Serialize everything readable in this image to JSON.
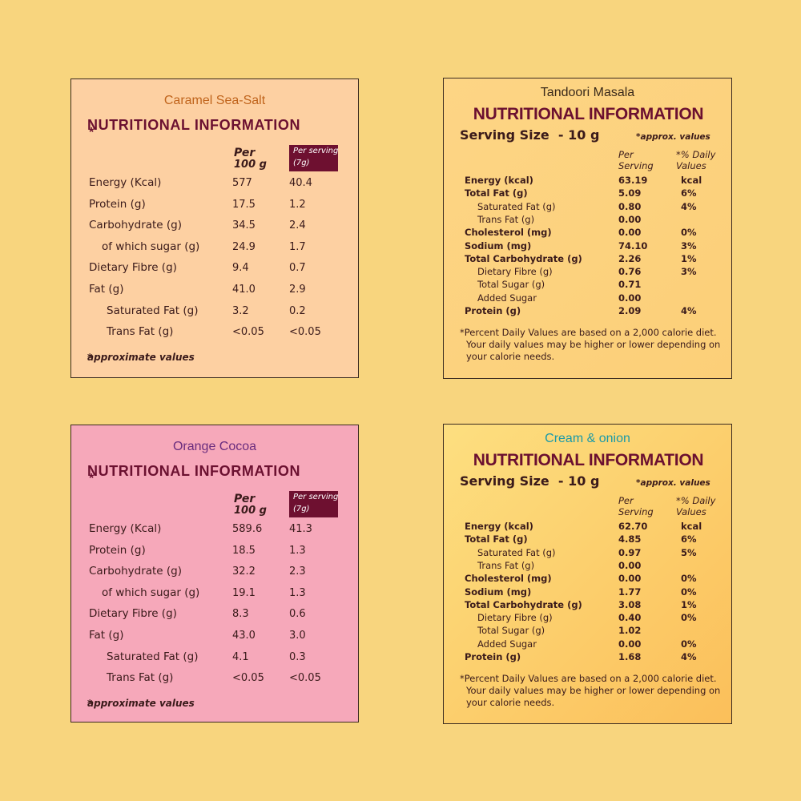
{
  "panels": [
    {
      "name": "Caramel Sea-Salt",
      "title": "NUTRITIONAL INFORMATION",
      "title_mark": "*",
      "headers": [
        [
          "Per",
          "100 g"
        ],
        [
          "Per serving",
          "(7g)"
        ]
      ],
      "rows": [
        {
          "label": "Energy (Kcal)",
          "level": 0,
          "values": [
            "577",
            "40.4"
          ]
        },
        {
          "label": "Protein (g)",
          "level": 0,
          "values": [
            "17.5",
            "1.2"
          ]
        },
        {
          "label": "Carbohydrate (g)",
          "level": 0,
          "values": [
            "34.5",
            "2.4"
          ]
        },
        {
          "label": "of which sugar (g)",
          "level": 1,
          "values": [
            "24.9",
            "1.7"
          ]
        },
        {
          "label": "Dietary Fibre (g)",
          "level": 0,
          "values": [
            "9.4",
            "0.7"
          ]
        },
        {
          "label": "Fat (g)",
          "level": 0,
          "values": [
            "41.0",
            "2.9"
          ]
        },
        {
          "label": "Saturated Fat (g)",
          "level": 2,
          "values": [
            "3.2",
            "0.2"
          ]
        },
        {
          "label": "Trans Fat (g)",
          "level": 2,
          "values": [
            "<0.05",
            "<0.05"
          ]
        }
      ],
      "footnote_mark": "*",
      "footnote": "approximate values"
    },
    {
      "name": "Tandoori Masala",
      "title": "NUTRITIONAL INFORMATION",
      "serving_size": "Serving Size  - 10 g",
      "note": "*approx. values",
      "headers": [
        [
          "Per",
          "Serving"
        ],
        [
          "*% Daily",
          "Values"
        ]
      ],
      "rows": [
        {
          "label": "Energy (kcal)",
          "bold": true,
          "values": [
            "63.19",
            "kcal"
          ]
        },
        {
          "label": "Total Fat (g)",
          "bold": true,
          "values": [
            "5.09",
            "6%"
          ]
        },
        {
          "label": "Saturated Fat (g)",
          "bold": false,
          "values": [
            "0.80",
            "4%"
          ]
        },
        {
          "label": "Trans Fat (g)",
          "bold": false,
          "values": [
            "0.00"
          ]
        },
        {
          "label": "Cholesterol (mg)",
          "bold": true,
          "values": [
            "0.00",
            "0%"
          ]
        },
        {
          "label": "Sodium (mg)",
          "bold": true,
          "values": [
            "74.10",
            "3%"
          ]
        },
        {
          "label": "Total Carbohydrate (g)",
          "bold": true,
          "values": [
            "2.26",
            "1%"
          ]
        },
        {
          "label": "Dietary Fibre (g)",
          "bold": false,
          "values": [
            "0.76",
            "3%"
          ]
        },
        {
          "label": "Total Sugar (g)",
          "bold": false,
          "values": [
            "0.71"
          ]
        },
        {
          "label": "Added Sugar",
          "bold": false,
          "values": [
            "0.00"
          ]
        },
        {
          "label": "Protein (g)",
          "bold": true,
          "values": [
            "2.09",
            "4%"
          ]
        }
      ],
      "footnote_lines": [
        "*Percent Daily Values are based on a 2,000 calorie diet.",
        "Your daily values may be higher or lower depending on",
        "your calorie needs."
      ]
    },
    {
      "name": "Orange Cocoa",
      "title": "NUTRITIONAL INFORMATION",
      "title_mark": "*",
      "headers": [
        [
          "Per",
          "100 g"
        ],
        [
          "Per serving",
          "(7g)"
        ]
      ],
      "rows": [
        {
          "label": "Energy (Kcal)",
          "level": 0,
          "values": [
            "589.6",
            "41.3"
          ]
        },
        {
          "label": "Protein (g)",
          "level": 0,
          "values": [
            "18.5",
            "1.3"
          ]
        },
        {
          "label": "Carbohydrate (g)",
          "level": 0,
          "values": [
            "32.2",
            "2.3"
          ]
        },
        {
          "label": "of which sugar (g)",
          "level": 1,
          "values": [
            "19.1",
            "1.3"
          ]
        },
        {
          "label": "Dietary Fibre (g)",
          "level": 0,
          "values": [
            "8.3",
            "0.6"
          ]
        },
        {
          "label": "Fat (g)",
          "level": 0,
          "values": [
            "43.0",
            "3.0"
          ]
        },
        {
          "label": "Saturated Fat (g)",
          "level": 2,
          "values": [
            "4.1",
            "0.3"
          ]
        },
        {
          "label": "Trans Fat (g)",
          "level": 2,
          "values": [
            "<0.05",
            "<0.05"
          ]
        }
      ],
      "footnote_mark": "*",
      "footnote": "approximate values"
    },
    {
      "name": "Cream & onion",
      "title": "NUTRITIONAL INFORMATION",
      "serving_size": "Serving Size  - 10 g",
      "note": "*approx. values",
      "headers": [
        [
          "Per",
          "Serving"
        ],
        [
          "*% Daily",
          "Values"
        ]
      ],
      "rows": [
        {
          "label": "Energy (kcal)",
          "bold": true,
          "values": [
            "62.70",
            "kcal"
          ]
        },
        {
          "label": "Total Fat (g)",
          "bold": true,
          "values": [
            "4.85",
            "6%"
          ]
        },
        {
          "label": "Saturated Fat (g)",
          "bold": false,
          "values": [
            "0.97",
            "5%"
          ]
        },
        {
          "label": "Trans Fat (g)",
          "bold": false,
          "values": [
            "0.00"
          ]
        },
        {
          "label": "Cholesterol (mg)",
          "bold": true,
          "values": [
            "0.00",
            "0%"
          ]
        },
        {
          "label": "Sodium (mg)",
          "bold": true,
          "values": [
            "1.77",
            "0%"
          ]
        },
        {
          "label": "Total Carbohydrate (g)",
          "bold": true,
          "values": [
            "3.08",
            "1%"
          ]
        },
        {
          "label": "Dietary Fibre (g)",
          "bold": false,
          "values": [
            "0.40",
            "0%"
          ]
        },
        {
          "label": "Total Sugar (g)",
          "bold": false,
          "values": [
            "1.02"
          ]
        },
        {
          "label": "Added Sugar",
          "bold": false,
          "values": [
            "0.00",
            "0%"
          ]
        },
        {
          "label": "Protein (g)",
          "bold": true,
          "values": [
            "1.68",
            "4%"
          ]
        }
      ],
      "footnote_lines": [
        "*Percent Daily Values are based on a 2,000 calorie diet.",
        "Your daily values may be higher or lower depending on",
        "your calorie needs."
      ]
    }
  ]
}
